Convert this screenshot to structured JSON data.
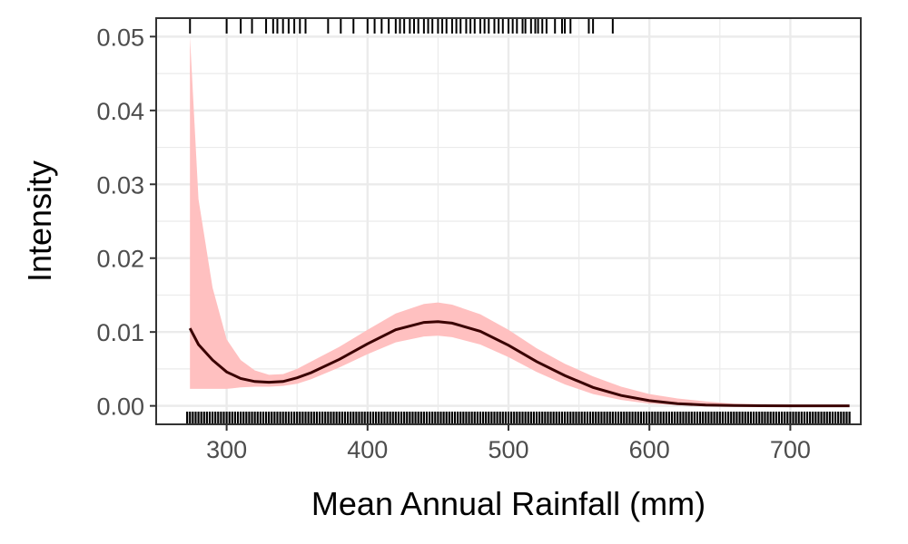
{
  "chart_data": {
    "type": "line",
    "xlabel": "Mean Annual Rainfall (mm)",
    "ylabel": "Intensity",
    "xlim": [
      250,
      750
    ],
    "ylim": [
      -0.0025,
      0.0525
    ],
    "x_ticks": [
      300,
      400,
      500,
      600,
      700
    ],
    "y_ticks": [
      0.0,
      0.01,
      0.02,
      0.03,
      0.04,
      0.05
    ],
    "x_tick_labels": [
      "300",
      "400",
      "500",
      "600",
      "700"
    ],
    "y_tick_labels": [
      "0.00",
      "0.01",
      "0.02",
      "0.03",
      "0.04",
      "0.05"
    ],
    "grid": true,
    "theme": "bw",
    "colors": {
      "line": "#3a0000",
      "ribbon": "#ffc0c0",
      "rug": "#000000",
      "grid": "#ebebeb",
      "panel_border": "#333333"
    },
    "series": [
      {
        "x": [
          274,
          280,
          290,
          300,
          310,
          320,
          330,
          340,
          350,
          360,
          380,
          400,
          420,
          440,
          450,
          460,
          480,
          500,
          520,
          540,
          560,
          580,
          600,
          620,
          640,
          660,
          680,
          700,
          720,
          742
        ],
        "y": [
          0.0105,
          0.0083,
          0.0062,
          0.0046,
          0.0037,
          0.0033,
          0.0032,
          0.0033,
          0.0038,
          0.0045,
          0.0063,
          0.0084,
          0.0103,
          0.0113,
          0.0114,
          0.0112,
          0.0101,
          0.0082,
          0.006,
          0.0041,
          0.0025,
          0.0014,
          0.0007,
          0.0003,
          0.0001,
          5e-05,
          2e-05,
          1e-05,
          5e-06,
          0.0
        ],
        "lower": [
          0.0023,
          0.0023,
          0.0023,
          0.0023,
          0.0025,
          0.0026,
          0.0026,
          0.0027,
          0.003,
          0.0036,
          0.0052,
          0.007,
          0.0086,
          0.0094,
          0.0095,
          0.0093,
          0.0083,
          0.0066,
          0.0046,
          0.0029,
          0.0016,
          0.0008,
          0.0003,
          0.0001,
          3e-05,
          1e-05,
          0.0,
          0.0,
          0.0,
          0.0
        ],
        "upper": [
          0.05,
          0.028,
          0.016,
          0.009,
          0.0062,
          0.0048,
          0.0042,
          0.0043,
          0.005,
          0.006,
          0.008,
          0.0103,
          0.0125,
          0.0138,
          0.014,
          0.0137,
          0.0124,
          0.0103,
          0.0078,
          0.0057,
          0.004,
          0.0026,
          0.0016,
          0.001,
          0.0006,
          0.0003,
          0.0002,
          0.0001,
          5e-05,
          3e-05
        ]
      }
    ],
    "rug_top": [
      274,
      300,
      310,
      318,
      328,
      333,
      336,
      340,
      344,
      348,
      352,
      356,
      372,
      381,
      390,
      400,
      405,
      410,
      415,
      420,
      423,
      426,
      430,
      433,
      436,
      440,
      443,
      446,
      450,
      453,
      456,
      460,
      463,
      466,
      470,
      473,
      476,
      480,
      483,
      486,
      490,
      493,
      496,
      500,
      503,
      506,
      510,
      512,
      516,
      519,
      521,
      524,
      527,
      533,
      538,
      540,
      544,
      557,
      560,
      574
    ],
    "rug_bottom_range": [
      272,
      742
    ]
  }
}
